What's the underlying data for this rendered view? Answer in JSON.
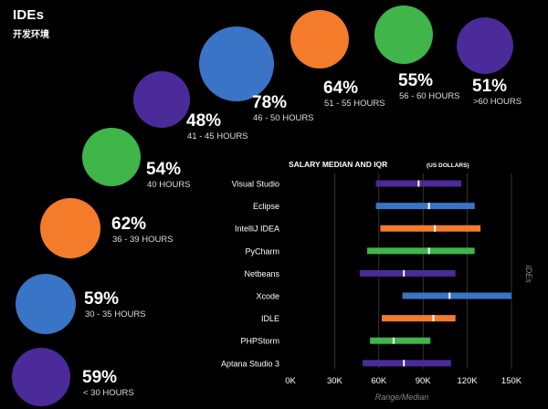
{
  "header": {
    "title": "IDEs",
    "subtitle": "开发环境"
  },
  "colors": {
    "purple": "#4b2a99",
    "blue": "#3a74c6",
    "orange": "#f47b2a",
    "green": "#3fb54a",
    "median": "#ffffff",
    "grid": "#555555"
  },
  "chart_data": [
    {
      "type": "bubble",
      "items": [
        {
          "percent": "59%",
          "label": "< 30 HOURS",
          "value": 59,
          "color": "purple"
        },
        {
          "percent": "59%",
          "label": "30 - 35 HOURS",
          "value": 59,
          "color": "blue"
        },
        {
          "percent": "62%",
          "label": "36 - 39 HOURS",
          "value": 62,
          "color": "orange"
        },
        {
          "percent": "54%",
          "label": "40 HOURS",
          "value": 54,
          "color": "green"
        },
        {
          "percent": "48%",
          "label": "41 - 45 HOURS",
          "value": 48,
          "color": "purple"
        },
        {
          "percent": "78%",
          "label": "46 - 50 HOURS",
          "value": 78,
          "color": "blue"
        },
        {
          "percent": "64%",
          "label": "51 - 55 HOURS",
          "value": 64,
          "color": "orange"
        },
        {
          "percent": "55%",
          "label": "56 - 60 HOURS",
          "value": 55,
          "color": "green"
        },
        {
          "percent": "51%",
          "label": ">60 HOURS",
          "value": 51,
          "color": "purple"
        }
      ]
    },
    {
      "type": "range",
      "title": "SALARY MEDIAN AND IQR",
      "title_unit": "(US DOLLARS)",
      "xlabel": "Range/Median",
      "side_label": "IDEs",
      "xlim": [
        0,
        150000
      ],
      "xticks": [
        {
          "value": 0,
          "label": "0K"
        },
        {
          "value": 30000,
          "label": "30K"
        },
        {
          "value": 60000,
          "label": "60K"
        },
        {
          "value": 90000,
          "label": "90K"
        },
        {
          "value": 120000,
          "label": "120K"
        },
        {
          "value": 150000,
          "label": "150K"
        }
      ],
      "series": [
        {
          "name": "Visual Studio",
          "low": 58000,
          "high": 116000,
          "median": 87000,
          "color": "purple"
        },
        {
          "name": "Eclipse",
          "low": 58000,
          "high": 125000,
          "median": 94000,
          "color": "blue"
        },
        {
          "name": "IntelliJ IDEA",
          "low": 61000,
          "high": 129000,
          "median": 98000,
          "color": "orange"
        },
        {
          "name": "PyCharm",
          "low": 52000,
          "high": 125000,
          "median": 94000,
          "color": "green"
        },
        {
          "name": "Netbeans",
          "low": 47000,
          "high": 112000,
          "median": 77000,
          "color": "purple"
        },
        {
          "name": "Xcode",
          "low": 76000,
          "high": 150000,
          "median": 108000,
          "color": "blue"
        },
        {
          "name": "IDLE",
          "low": 62000,
          "high": 112000,
          "median": 97000,
          "color": "orange"
        },
        {
          "name": "PHPStorm",
          "low": 54000,
          "high": 95000,
          "median": 70000,
          "color": "green"
        },
        {
          "name": "Aptana Studio 3",
          "low": 49000,
          "high": 109000,
          "median": 77000,
          "color": "purple"
        }
      ]
    }
  ]
}
